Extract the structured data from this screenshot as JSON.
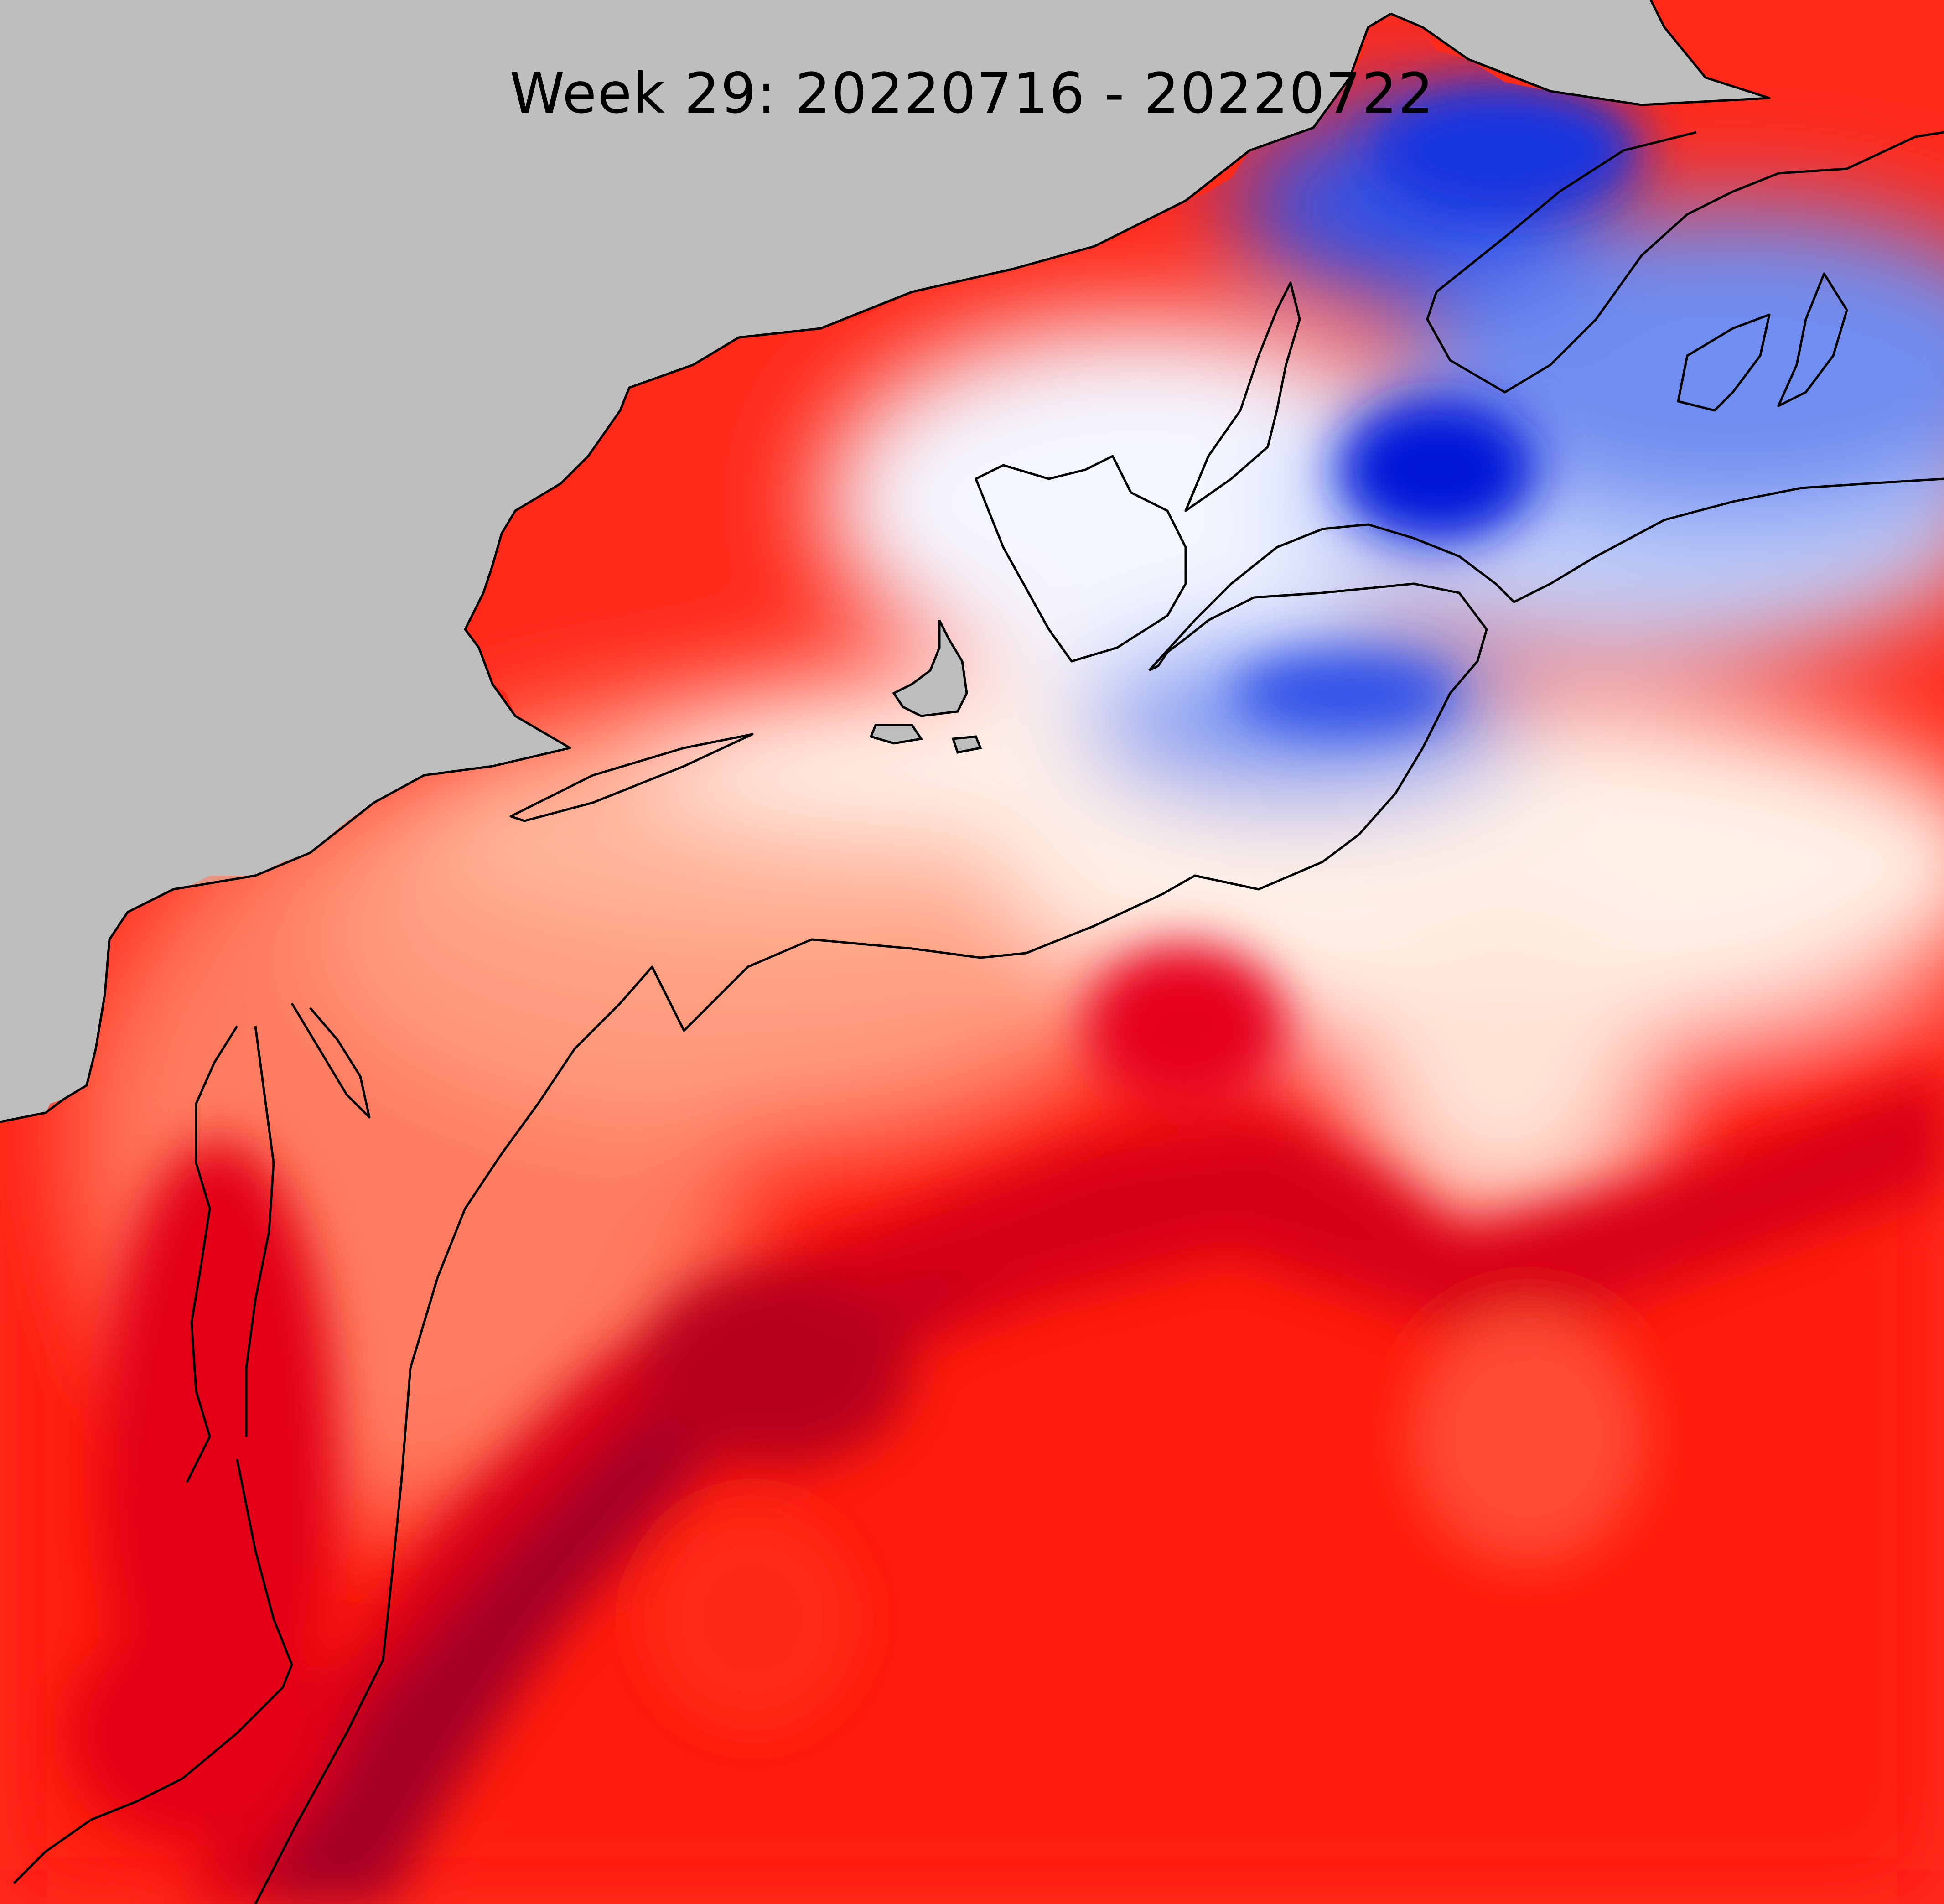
{
  "map": {
    "title": "Week 29: 20220716 - 20220722",
    "colors": {
      "land": "#bebebe",
      "coastline": "#000000",
      "shelf_break_contour": "#000000",
      "warm_anomaly_max": "#a50026",
      "warm_anomaly_strong": "#ff0000",
      "warm_anomaly_mild": "#ffa585",
      "neutral": "#fff5ee",
      "cool_anomaly_mild": "#b9ccfa",
      "cool_anomaly_strong": "#0a28e6"
    }
  }
}
